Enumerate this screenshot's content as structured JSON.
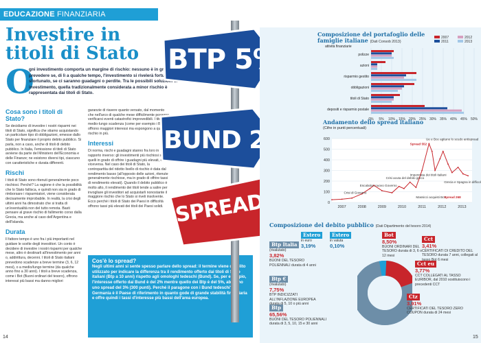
{
  "header": {
    "section_a": "EDUCAZIONE",
    "section_b": "FINANZIARIA"
  },
  "article": {
    "title": "Investire in titoli di Stato",
    "drop_cap": "O",
    "lead": "gni investimento comporta un margine di rischio: nessuno è in grado di prevedere se, di lì a qualche tempo, l'investimento si rivelerà fortunato o sfortunato, se ci saranno guadagni o perdite. Tra le possibili soluzioni di investimento, quella tradizionalmente considerata a minor rischio è rappresentata dai titoli di Stato.",
    "s1_title": "Cosa sono i titoli di Stato?",
    "s1_body": "Se decidiamo di investire i nostri risparmi nei titoli di Stato, significa che stiamo acquistando un particolare tipo di obbligazioni, emesse dallo Stato per finanziare il proprio debito pubblico. Si parla, non a caso, anche di titoli di debito pubblico. In Italia, l'emissione di titoli di Stato avviene da parte del Ministero dell'Economia e delle Finanze; ne esistono diversi tipi, ciascuno con caratteristiche e durata differenti.",
    "s2_title": "Rischi",
    "s2_body": "I titoli di Stato sono ritenuti generalmente poco rischiosi. Perché? La ragione è che la possibilità che lo Stato fallisca, e quindi non sia in grado di rimborsare i risparmiatori, viene considerata decisamente improbabile. In realtà, la crisi degli ultimi anni ha dimostrato che si tratta di un'eventualità non del tutto remota. Basti pensare al grave rischio di fallimento corso dalla Grecia, ma anche al caso dell'Argentina e dell'Islanda.",
    "s3_title": "Durata",
    "s3_body": "Il fattore tempo è uno fra i più importanti nel guidare le scelte degli investitori. Un conto è decidere di investire i nostri risparmi per qualche mese, altro è destinarli all'investimento per anni o, addirittura, decenni. I titoli di Stato italiani prevedono scadenze a breve termine (3, 6, 12 mesi), o a medio/lungo termine (da qualche anno fino a 30 anni). I titoli a breve scadenza, come i Bot (Buoni ordinari del tesoro), offrono interessi più bassi ma danno migliori",
    "c2_body": "garanzie di riavere quanto versato, dal momento che nell'arco di qualche mese difficilmente possono verificarsi eventi catastrofici imprevedibili. I titoli a medio-lungo scadenza (come per esempio i Btp) offrono maggiori interessi ma espongono a qualche rischio in più.",
    "s4_title": "Interessi",
    "s4_body": "Di norma, rischi e guadagni stanno fra loro in rapporto inverso: gli investimenti più rischiosi sono quelli in grado di offrire i guadagni più elevati, e viceversa. Nel caso dei titoli di Stato, la contropartita del ridotto livello di rischio è data dal rendimento basso (all'opposto delle azioni, ritenute generalmente rischiose, ma in grado di offrire tassi di rendimento elevati). Quando il debito pubblico è molto alto, il rendimento dei titoli tende a salire per invogliare gli investitori ad acquistarli nonostante il maggiore rischio che lo Stato si riveli insolvente. Ecco perché i titoli di Stato dei Paesi in difficoltà offrono tassi più elevati dei titoli dei Paesi solidi.",
    "box_title": "Cos'è lo spread?",
    "box_body": "Negli ultimi anni si sente spesso parlare dello spread: il termine viene di solito utilizzato per indicare la differenza tra il rendimento offerto dai titoli di Stato italiani (Btp a 10 anni) rispetto agli omologhi tedeschi (Bund). Se, per esempio, l'interesse offerto dai Bund è del 2% mentre quello dei Btp è del 5%, abbiamo uno spread del 3% (300 punti). Perché il paragone con i Bund tedeschi? La Germania è il Paese di riferimento in quanto gode di grande stabilità finanziaria e offre quindi i tassi d'interesse più bassi dell'area europea."
  },
  "signs": [
    {
      "text": "BTP 5%",
      "color": "#1c4e9b"
    },
    {
      "text": "BUND 2%",
      "color": "#1c4e9b"
    },
    {
      "text": "SPREAD 3%",
      "color": "#c8252b"
    }
  ],
  "pages": {
    "left": "14",
    "right": "15"
  },
  "portfolio": {
    "title": "Composizione del portafoglio delle famiglie italiane",
    "source": "(Dati Consob 2013)",
    "axis_label": "attività finanziarie",
    "legend": [
      "2007",
      "2012",
      "2011",
      "2013"
    ],
    "colors": {
      "2007": "#c8252b",
      "2011": "#1c4e9b",
      "2012": "#d6a0c0",
      "2013": "#a3c8e8"
    }
  },
  "spread_chart": {
    "title": "Andamento dello spread italiano",
    "subtitle": "(Cifre in punti percentuali)",
    "annotations": {
      "crisi_governo": "Crisi di Governo",
      "escalation": "Escalation nuovo Governo",
      "crisi_acuta": "Crisi acuta del debito greco",
      "impennata": "Impennata dei titoli italiani",
      "massicci": "Massicci acquisti Bce",
      "ue_bce": "Ue e Bce agitano lo scudo antispread",
      "spread552": "Spread 552",
      "grecia": "Grecia e Spagna in difficoltà",
      "spread268": "Spread 268"
    }
  },
  "debt": {
    "title": "Composizione del debito pubblico",
    "source": "(Dati Dipartimento del tesoro 2014)",
    "items": [
      {
        "name": "Estero",
        "pct_label": "in euro",
        "pct": "3,19%",
        "desc": "",
        "color": "#1f9fd6"
      },
      {
        "name": "Estero",
        "pct_label": "in valuta",
        "pct": "0,10%",
        "desc": "",
        "color": "#1f9fd6"
      },
      {
        "name": "Bot",
        "pct_label": "",
        "pct": "8,50%",
        "desc": "BUONI ORDINARI DEL TESORO durata di 3, 6 o 12 mesi",
        "color": "#c8252b"
      },
      {
        "name": "Cct",
        "pct_label": "",
        "pct": "3,41%",
        "desc": "CERTIFICATI DI CREDITO DEL TESORO durata 7 anni, collegati al tasso Bot 6 mesi",
        "color": "#c8252b"
      },
      {
        "name": "Btp Italia",
        "pct_label": "(rivalutato)",
        "pct": "3,82%",
        "desc": "BUONI DEL TESORO POLIENNALI durata di 4 anni",
        "color": "#6d8ea8"
      },
      {
        "name": "Btp €",
        "pct_label": "(rivalutato)",
        "pct": "7,75%",
        "desc": "BTP INDICIZZATI ALL'INFLAZIONE EUROPEA durata di 5, 10 o più anni",
        "color": "#6d8ea8"
      },
      {
        "name": "Btp",
        "pct_label": "",
        "pct": "65,56%",
        "desc": "BUONI DEL TESORO POLIENNALI durata di 3, 5, 10, 15 e 30 anni",
        "color": "#6d8ea8"
      },
      {
        "name": "Cct eu",
        "pct_label": "",
        "pct": "3,77%",
        "desc": "CCT COLLEGATI AL TASSO EURIBOR, dal 2010 sostituiscono i precedenti CCT",
        "color": "#c8252b"
      },
      {
        "name": "Ctz",
        "pct_label": "",
        "pct": "3,91%",
        "desc": "CERTIFICATI DEL TESORO ZERO COUPON durata di 24 mesi",
        "color": "#c8252b"
      }
    ]
  },
  "chart_data": [
    {
      "type": "bar",
      "title": "Composizione del portafoglio delle famiglie italiane",
      "categories": [
        "polizze",
        "azioni",
        "risparmio gestito",
        "obbligazioni",
        "titoli di Stato",
        "depositi e risparmio postale"
      ],
      "series": [
        {
          "name": "2007",
          "values": [
            11,
            7,
            22,
            21,
            14,
            26
          ]
        },
        {
          "name": "2011",
          "values": [
            10,
            3,
            17,
            16,
            11,
            37
          ]
        },
        {
          "name": "2012",
          "values": [
            10,
            3,
            16,
            15,
            11,
            44
          ]
        },
        {
          "name": "2013",
          "values": [
            11,
            3,
            22,
            13,
            10,
            45
          ]
        }
      ],
      "xticks": [
        "0%",
        "5%",
        "10%",
        "15%",
        "20%",
        "25%",
        "30%",
        "35%",
        "40%",
        "45%",
        "50%"
      ],
      "xlim": [
        0,
        50
      ],
      "orientation": "horizontal",
      "legend": "top-right"
    },
    {
      "type": "line",
      "title": "Andamento dello spread italiano",
      "x": [
        2007.0,
        2007.5,
        2008.0,
        2008.5,
        2008.9,
        2009.1,
        2009.5,
        2010.0,
        2010.35,
        2010.6,
        2010.9,
        2011.2,
        2011.5,
        2011.85,
        2012.0,
        2012.15,
        2012.4,
        2012.55,
        2012.8,
        2013.0,
        2013.3,
        2013.55,
        2013.8
      ],
      "y": [
        25,
        30,
        40,
        80,
        130,
        160,
        110,
        90,
        150,
        130,
        190,
        140,
        300,
        552,
        480,
        300,
        410,
        480,
        360,
        280,
        330,
        268,
        250
      ],
      "xticks": [
        "2007",
        "2008",
        "2009",
        "2010",
        "2011",
        "2012",
        "2013"
      ],
      "yticks": [
        0,
        100,
        200,
        300,
        400,
        500,
        600
      ],
      "ylim": [
        0,
        600
      ]
    }
  ]
}
